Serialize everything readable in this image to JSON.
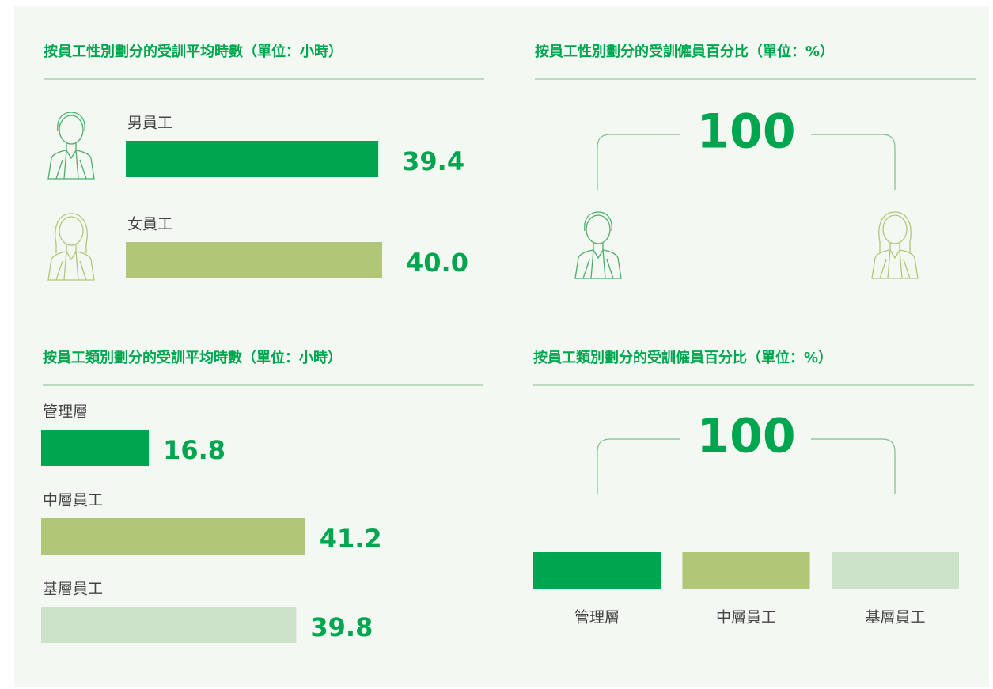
{
  "panels": [
    {
      "title": "按員工性別劃分的受訓平均時數（單位：小時）",
      "items": [
        {
          "label": "男員工",
          "value": 39.4,
          "color": "#00a64f",
          "icon": "male"
        },
        {
          "label": "女員工",
          "value": 40.0,
          "value_label": "40.0",
          "color": "#b2c677",
          "icon": "female"
        }
      ]
    },
    {
      "title": "按員工性別劃分的受訓僱員百分比（單位：%）",
      "value": 100
    },
    {
      "title": "按員工類別劃分的受訓平均時數（單位：小時）",
      "items": [
        {
          "label": "管理層",
          "value": 16.8,
          "color": "#00a64f"
        },
        {
          "label": "中層員工",
          "value": 41.2,
          "color": "#b2c677"
        },
        {
          "label": "基層員工",
          "value": 39.8,
          "color": "#cde3c9"
        }
      ]
    },
    {
      "title": "按員工類別劃分的受訓僱員百分比（單位：%）",
      "value": 100,
      "categories": [
        "管理層",
        "中層員工",
        "基層員工"
      ],
      "colors": [
        "#00a64f",
        "#b2c677",
        "#cde3c9"
      ]
    }
  ]
}
